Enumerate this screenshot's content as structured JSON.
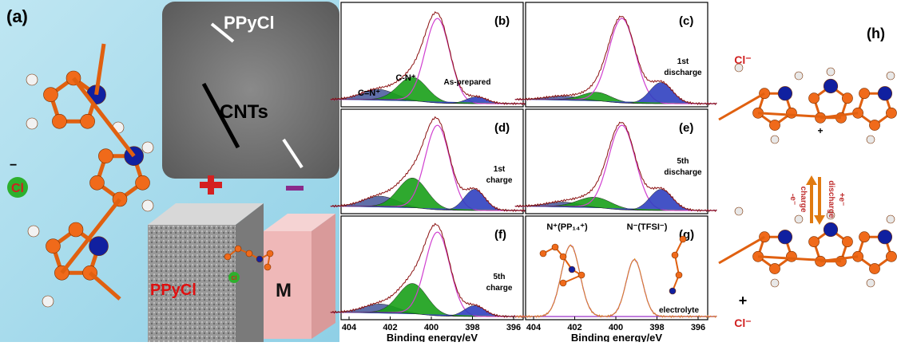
{
  "panel_a": {
    "label": "(a)",
    "tem_label": "PPyCl",
    "tem_cnts": "CNTs",
    "block_label": "PPyCl",
    "m_label": "M",
    "cl": "Cl",
    "cl_charge": "−",
    "small_cl": "Cl"
  },
  "xps": {
    "panels": [
      {
        "label": "(b)",
        "notes": [
          "C=N⁺",
          "C-N⁺",
          "As-prepared"
        ]
      },
      {
        "label": "(c)",
        "notes": [
          "1st",
          "discharge"
        ]
      },
      {
        "label": "(d)",
        "notes": [
          "1st",
          "charge"
        ]
      },
      {
        "label": "(e)",
        "notes": [
          "5th",
          "discharge"
        ]
      },
      {
        "label": "(f)",
        "notes": [
          "5th",
          "charge"
        ]
      },
      {
        "label": "(g)",
        "notes": [
          "N⁺(PP₁₄⁺)",
          "N⁻(TFSI⁻)",
          "electrolyte"
        ]
      }
    ],
    "xticks": [
      "404",
      "402",
      "400",
      "398",
      "396"
    ],
    "xlabel": "Binding energy/eV"
  },
  "panel_h": {
    "label": "(h)",
    "cl_top": "Cl⁻",
    "cl_bottom": "Cl⁻",
    "charge": "charge",
    "discharge": "discharge",
    "e_charge": "-e⁻",
    "e_discharge": "+e⁻",
    "plus_top": "+",
    "plus_bottom": "+"
  }
}
